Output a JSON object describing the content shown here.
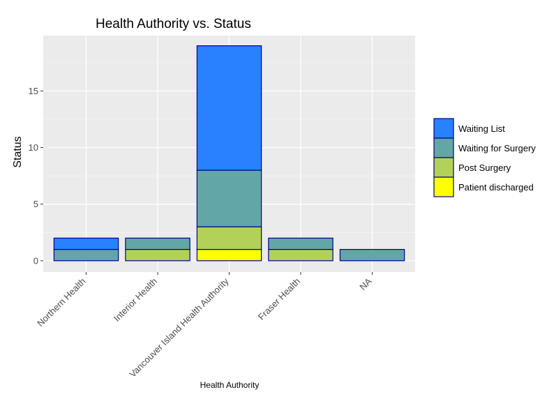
{
  "chart_data": {
    "type": "bar",
    "stacked": true,
    "title": "Health Authority vs. Status",
    "xlabel": "Health Authority",
    "ylabel": "Status",
    "categories": [
      "Northern Health",
      "Interior Health",
      "Vancouver Island Health Authority",
      "Fraser Health",
      "NA"
    ],
    "ylim": [
      -1,
      19.9
    ],
    "yticks": [
      0,
      5,
      10,
      15
    ],
    "grid": true,
    "legend_position": "right",
    "series": [
      {
        "name": "Patient discharged",
        "color": "#ffff00",
        "values": [
          0,
          0,
          1,
          0,
          0
        ]
      },
      {
        "name": "Post Surgery",
        "color": "#b3d159",
        "values": [
          0,
          1,
          2,
          1,
          0
        ]
      },
      {
        "name": "Waiting for Surgery",
        "color": "#62a6a8",
        "values": [
          1,
          1,
          5,
          1,
          1
        ]
      },
      {
        "name": "Waiting List",
        "color": "#2a81ff",
        "values": [
          1,
          0,
          11,
          0,
          0
        ]
      }
    ],
    "legend_order": [
      "Waiting List",
      "Waiting for Surgery",
      "Post Surgery",
      "Patient discharged"
    ],
    "bar_outline_color": "#00008b",
    "panel_background": "#ebebeb"
  }
}
